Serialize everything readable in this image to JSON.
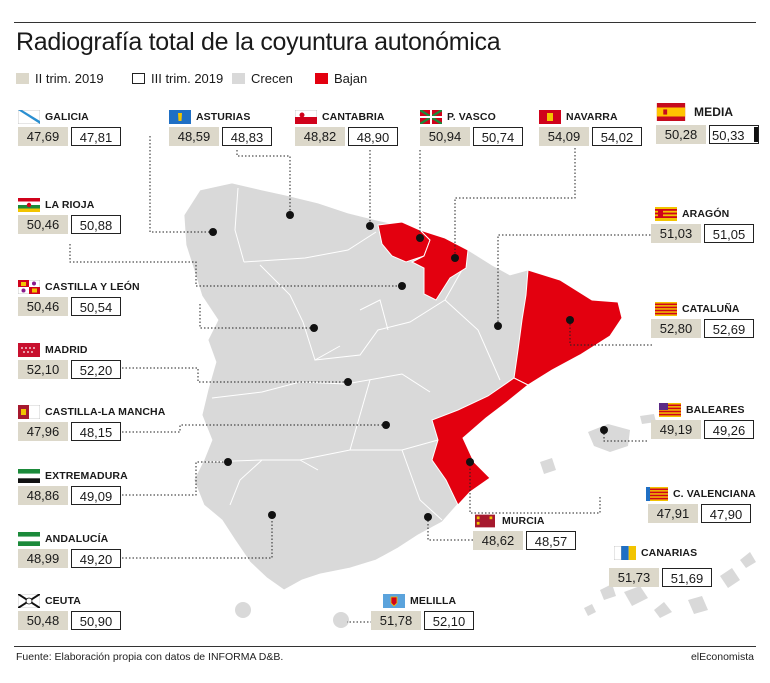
{
  "title": "Radiografía total de la coyuntura autonómica",
  "legend": [
    {
      "label": "II trim. 2019",
      "color": "#dcd8ca"
    },
    {
      "label": "III trim. 2019",
      "color": "#ffffff"
    },
    {
      "label": "Crecen",
      "color": "#d9d9d9"
    },
    {
      "label": "Bajan",
      "color": "#e3000f"
    }
  ],
  "regions": [
    {
      "name": "GALICIA",
      "flag": "galicia-flag-icon",
      "q2": "47,69",
      "q3": "47,81"
    },
    {
      "name": "ASTURIAS",
      "flag": "asturias-flag-icon",
      "q2": "48,59",
      "q3": "48,83"
    },
    {
      "name": "CANTABRIA",
      "flag": "cantabria-flag-icon",
      "q2": "48,82",
      "q3": "48,90"
    },
    {
      "name": "P. VASCO",
      "flag": "pais-vasco-flag-icon",
      "q2": "50,94",
      "q3": "50,74"
    },
    {
      "name": "NAVARRA",
      "flag": "navarra-flag-icon",
      "q2": "54,09",
      "q3": "54,02"
    },
    {
      "name": "MEDIA",
      "flag": "spain-flag-icon",
      "q2": "50,28",
      "q3": "50,33"
    },
    {
      "name": "LA RIOJA",
      "flag": "la-rioja-flag-icon",
      "q2": "50,46",
      "q3": "50,88"
    },
    {
      "name": "ARAGÓN",
      "flag": "aragon-flag-icon",
      "q2": "51,03",
      "q3": "51,05"
    },
    {
      "name": "CASTILLA Y LEÓN",
      "flag": "castilla-y-leon-flag-icon",
      "q2": "50,46",
      "q3": "50,54"
    },
    {
      "name": "CATALUÑA",
      "flag": "cataluna-flag-icon",
      "q2": "52,80",
      "q3": "52,69"
    },
    {
      "name": "MADRID",
      "flag": "madrid-flag-icon",
      "q2": "52,10",
      "q3": "52,20"
    },
    {
      "name": "BALEARES",
      "flag": "baleares-flag-icon",
      "q2": "49,19",
      "q3": "49,26"
    },
    {
      "name": "CASTILLA-LA MANCHA",
      "flag": "castilla-la-mancha-flag-icon",
      "q2": "47,96",
      "q3": "48,15"
    },
    {
      "name": "C. VALENCIANA",
      "flag": "valencia-flag-icon",
      "q2": "47,91",
      "q3": "47,90"
    },
    {
      "name": "EXTREMADURA",
      "flag": "extremadura-flag-icon",
      "q2": "48,86",
      "q3": "49,09"
    },
    {
      "name": "MURCIA",
      "flag": "murcia-flag-icon",
      "q2": "48,62",
      "q3": "48,57"
    },
    {
      "name": "ANDALUCÍA",
      "flag": "andalucia-flag-icon",
      "q2": "48,99",
      "q3": "49,20"
    },
    {
      "name": "CANARIAS",
      "flag": "canarias-flag-icon",
      "q2": "51,73",
      "q3": "51,69"
    },
    {
      "name": "CEUTA",
      "flag": "ceuta-flag-icon",
      "q2": "50,48",
      "q3": "50,90"
    },
    {
      "name": "MELILLA",
      "flag": "melilla-flag-icon",
      "q2": "51,78",
      "q3": "52,10"
    }
  ],
  "footer": {
    "source": "Fuente: Elaboración propia con datos de INFORMA D&B.",
    "brand": "elEconomista"
  }
}
